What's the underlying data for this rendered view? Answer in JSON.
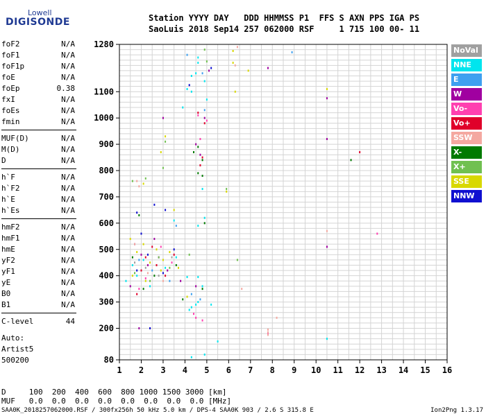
{
  "logo": {
    "line1": "Lowell",
    "line2": "DIGISONDE"
  },
  "header": {
    "line1": "Station YYYY DAY   DDD HHMMSS P1  FFS S AXN PPS IGA PS",
    "line2": "SaoLuis 2018 Sep14 257 062000 RSF     1 715 100 00- 11"
  },
  "params_groups": [
    [
      {
        "name": "foF2",
        "value": "N/A"
      },
      {
        "name": "foF1",
        "value": "N/A"
      },
      {
        "name": "foF1p",
        "value": "N/A"
      },
      {
        "name": "foE",
        "value": "N/A"
      },
      {
        "name": "foEp",
        "value": "0.38"
      },
      {
        "name": "fxI",
        "value": "N/A"
      },
      {
        "name": "foEs",
        "value": "N/A"
      },
      {
        "name": "fmin",
        "value": "N/A"
      }
    ],
    [
      {
        "name": "MUF(D)",
        "value": "N/A"
      },
      {
        "name": "M(D)",
        "value": "N/A"
      },
      {
        "name": "D",
        "value": "N/A"
      }
    ],
    [
      {
        "name": "h`F",
        "value": "N/A"
      },
      {
        "name": "h`F2",
        "value": "N/A"
      },
      {
        "name": "h`E",
        "value": "N/A"
      },
      {
        "name": "h`Es",
        "value": "N/A"
      }
    ],
    [
      {
        "name": "hmF2",
        "value": "N/A"
      },
      {
        "name": "hmF1",
        "value": "N/A"
      },
      {
        "name": "hmE",
        "value": "N/A"
      },
      {
        "name": "yF2",
        "value": "N/A"
      },
      {
        "name": "yF1",
        "value": "N/A"
      },
      {
        "name": "yE",
        "value": "N/A"
      },
      {
        "name": "B0",
        "value": "N/A"
      },
      {
        "name": "B1",
        "value": "N/A"
      }
    ],
    [
      {
        "name": "C-level",
        "value": "44"
      }
    ]
  ],
  "auto": {
    "line1": "Auto:",
    "line2": "Artist5",
    "line3": "500200"
  },
  "legend": [
    {
      "label": "NoVal",
      "color": "#a0a0a0"
    },
    {
      "label": "NNE",
      "color": "#00e5ee"
    },
    {
      "label": "E",
      "color": "#3ea0f0"
    },
    {
      "label": "W",
      "color": "#a000a0"
    },
    {
      "label": "Vo-",
      "color": "#ff40b0"
    },
    {
      "label": "Vo+",
      "color": "#e0002a"
    },
    {
      "label": "SSW",
      "color": "#f4a8a0"
    },
    {
      "label": "X-",
      "color": "#007a00"
    },
    {
      "label": "X+",
      "color": "#70c050"
    },
    {
      "label": "SSE",
      "color": "#d8d800"
    },
    {
      "label": "NNW",
      "color": "#1010d0"
    }
  ],
  "bottom": {
    "d_row": "D     100  200  400  600  800 1000 1500 3000 [km]",
    "muf_row": "MUF   0.0  0.0  0.0  0.0  0.0  0.0  0.0  0.0 [MHz]"
  },
  "footer": {
    "left": "SAA0K_2018257062000.RSF / 300fx256h 50 kHz 5.0 km / DPS-4 SAA0K 903 / 2.6 S 315.8 E",
    "right": "Ion2Png 1.3.17"
  },
  "chart_data": {
    "type": "scatter",
    "x_range": [
      1,
      16
    ],
    "y_range": [
      80,
      1280
    ],
    "x_ticks": [
      1,
      2,
      3,
      4,
      5,
      6,
      7,
      8,
      9,
      10,
      11,
      12,
      13,
      14,
      15,
      16
    ],
    "y_ticks": [
      80,
      200,
      300,
      400,
      500,
      600,
      700,
      800,
      900,
      1000,
      1100,
      1280
    ],
    "grid": true,
    "series": [
      {
        "color": "#00e5ee",
        "points": [
          [
            4.6,
            1230
          ],
          [
            4.6,
            1210
          ],
          [
            4.5,
            1170
          ],
          [
            4.3,
            1160
          ],
          [
            4.9,
            1140
          ],
          [
            4.1,
            1110
          ],
          [
            4.3,
            1100
          ],
          [
            5.0,
            1070
          ],
          [
            3.9,
            1040
          ],
          [
            4.6,
            300
          ],
          [
            4.5,
            290
          ],
          [
            4.3,
            280
          ],
          [
            5.2,
            290
          ],
          [
            4.8,
            730
          ],
          [
            4.9,
            620
          ],
          [
            4.6,
            590
          ],
          [
            3.5,
            610
          ],
          [
            5.5,
            150
          ],
          [
            4.3,
            90
          ],
          [
            4.9,
            100
          ],
          [
            10.5,
            160
          ],
          [
            4.1,
            395
          ],
          [
            4.6,
            395
          ],
          [
            4.8,
            360
          ],
          [
            1.6,
            440
          ],
          [
            1.8,
            400
          ],
          [
            2.1,
            460
          ],
          [
            2.4,
            360
          ],
          [
            3.1,
            430
          ],
          [
            3.6,
            470
          ],
          [
            1.3,
            380
          ],
          [
            4.2,
            270
          ]
        ]
      },
      {
        "color": "#3ea0f0",
        "points": [
          [
            8.9,
            1250
          ],
          [
            4.8,
            1170
          ],
          [
            4.1,
            1240
          ],
          [
            4.9,
            1030
          ],
          [
            3.6,
            590
          ],
          [
            4.3,
            330
          ],
          [
            4.7,
            310
          ],
          [
            1.9,
            460
          ],
          [
            2.5,
            420
          ],
          [
            3.3,
            380
          ]
        ]
      },
      {
        "color": "#a000a0",
        "points": [
          [
            7.8,
            1190
          ],
          [
            5.1,
            1180
          ],
          [
            4.9,
            1000
          ],
          [
            10.5,
            1075
          ],
          [
            10.5,
            920
          ],
          [
            10.5,
            510
          ],
          [
            3.0,
            1000
          ],
          [
            4.7,
            860
          ],
          [
            4.5,
            900
          ],
          [
            2.4,
            200
          ],
          [
            1.9,
            200
          ],
          [
            4.5,
            360
          ],
          [
            1.7,
            520
          ],
          [
            2.0,
            480
          ],
          [
            2.3,
            440
          ],
          [
            2.8,
            470
          ],
          [
            3.2,
            420
          ],
          [
            3.8,
            380
          ],
          [
            1.5,
            360
          ],
          [
            2.6,
            540
          ]
        ]
      },
      {
        "color": "#ff40b0",
        "points": [
          [
            4.6,
            1010
          ],
          [
            5.0,
            990
          ],
          [
            4.7,
            920
          ],
          [
            4.5,
            240
          ],
          [
            4.8,
            230
          ],
          [
            4.4,
            255
          ],
          [
            1.9,
            350
          ],
          [
            2.2,
            390
          ],
          [
            2.9,
            510
          ],
          [
            3.4,
            450
          ],
          [
            7.8,
            180
          ],
          [
            12.8,
            560
          ]
        ]
      },
      {
        "color": "#e0002a",
        "points": [
          [
            4.6,
            1020
          ],
          [
            4.9,
            980
          ],
          [
            4.7,
            820
          ],
          [
            4.8,
            850
          ],
          [
            12.0,
            870
          ],
          [
            1.8,
            330
          ],
          [
            2.0,
            420
          ],
          [
            2.2,
            470
          ],
          [
            2.7,
            440
          ],
          [
            3.1,
            400
          ],
          [
            3.5,
            480
          ],
          [
            2.5,
            510
          ]
        ]
      },
      {
        "color": "#f4a8a0",
        "points": [
          [
            1.9,
            740
          ],
          [
            1.8,
            760
          ],
          [
            6.4,
            1270
          ],
          [
            6.3,
            1200
          ],
          [
            7.8,
            195
          ],
          [
            7.8,
            185
          ],
          [
            7.8,
            175
          ],
          [
            8.2,
            240
          ],
          [
            6.6,
            350
          ],
          [
            10.5,
            570
          ],
          [
            1.7,
            520
          ],
          [
            2.3,
            410
          ],
          [
            3.0,
            380
          ]
        ]
      },
      {
        "color": "#007a00",
        "points": [
          [
            4.4,
            870
          ],
          [
            4.6,
            890
          ],
          [
            4.8,
            840
          ],
          [
            4.6,
            790
          ],
          [
            4.8,
            780
          ],
          [
            4.9,
            600
          ],
          [
            4.8,
            350
          ],
          [
            3.9,
            310
          ],
          [
            11.6,
            840
          ],
          [
            1.6,
            470
          ],
          [
            2.1,
            350
          ],
          [
            2.6,
            400
          ],
          [
            3.6,
            440
          ],
          [
            1.9,
            630
          ]
        ]
      },
      {
        "color": "#70c050",
        "points": [
          [
            4.9,
            1260
          ],
          [
            5.0,
            1215
          ],
          [
            3.1,
            910
          ],
          [
            3.0,
            810
          ],
          [
            2.2,
            770
          ],
          [
            1.6,
            760
          ],
          [
            6.4,
            460
          ],
          [
            5.9,
            730
          ],
          [
            4.2,
            480
          ],
          [
            1.7,
            410
          ],
          [
            2.4,
            380
          ],
          [
            2.8,
            470
          ],
          [
            3.3,
            430
          ]
        ]
      },
      {
        "color": "#d8d800",
        "points": [
          [
            6.2,
            1255
          ],
          [
            6.2,
            1210
          ],
          [
            6.9,
            1180
          ],
          [
            10.5,
            1110
          ],
          [
            6.3,
            1100
          ],
          [
            2.9,
            870
          ],
          [
            3.1,
            930
          ],
          [
            3.5,
            650
          ],
          [
            5.9,
            720
          ],
          [
            2.1,
            750
          ],
          [
            1.5,
            540
          ],
          [
            1.8,
            490
          ],
          [
            2.1,
            520
          ],
          [
            2.4,
            450
          ],
          [
            2.7,
            500
          ],
          [
            3.0,
            460
          ],
          [
            3.3,
            490
          ],
          [
            3.7,
            430
          ],
          [
            1.6,
            400
          ],
          [
            2.2,
            380
          ],
          [
            2.9,
            420
          ],
          [
            4.1,
            320
          ]
        ]
      },
      {
        "color": "#1010d0",
        "points": [
          [
            4.2,
            1125
          ],
          [
            5.2,
            1190
          ],
          [
            3.1,
            650
          ],
          [
            2.6,
            670
          ],
          [
            1.8,
            640
          ],
          [
            2.4,
            200
          ],
          [
            1.8,
            420
          ],
          [
            2.3,
            480
          ],
          [
            3.0,
            410
          ],
          [
            3.5,
            500
          ],
          [
            2.0,
            560
          ]
        ]
      },
      {
        "color": "#a0a0a0",
        "points": [
          [
            1.7,
            450
          ],
          [
            2.2,
            430
          ],
          [
            2.8,
            400
          ],
          [
            3.4,
            470
          ]
        ]
      }
    ]
  }
}
